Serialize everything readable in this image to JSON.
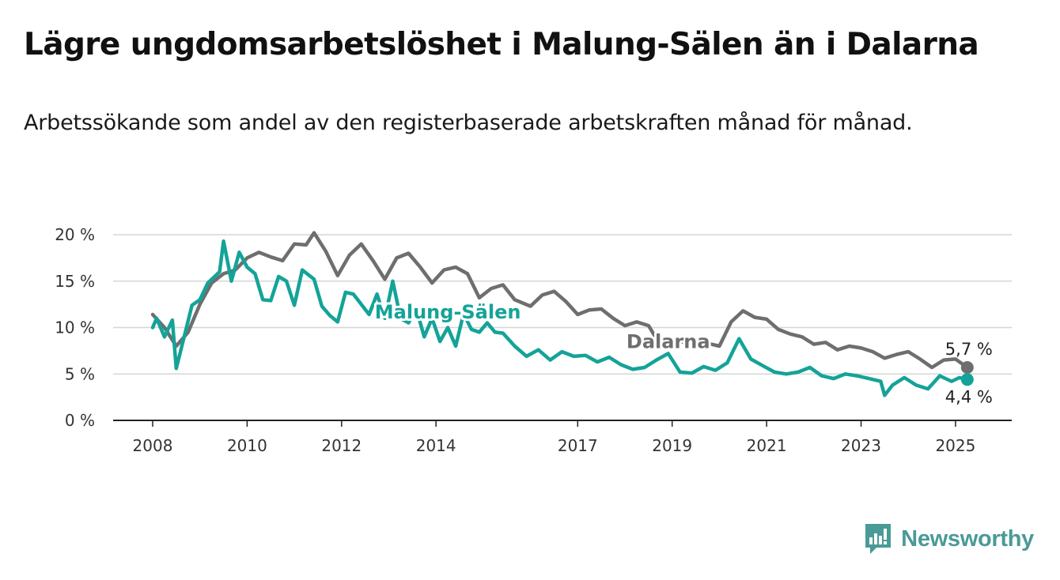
{
  "title": "Lägre ungdomsarbetslöshet i Malung-Sälen än i Dalarna",
  "subtitle": "Arbetssökande som andel av den registerbaserade arbetskraften månad för månad.",
  "brand": {
    "name": "Newsworthy",
    "icon": "newsworthy-logo-icon",
    "color": "#4a9a97"
  },
  "chart_data": {
    "type": "line",
    "title": "Lägre ungdomsarbetslöshet i Malung-Sälen än i Dalarna",
    "subtitle": "Arbetssökande som andel av den registerbaserade arbetskraften månad för månad.",
    "xlabel": "",
    "ylabel": "",
    "x_ticks": [
      "2008",
      "2010",
      "2012",
      "2014",
      "2017",
      "2019",
      "2021",
      "2023",
      "2025"
    ],
    "y_ticks": [
      "0 %",
      "5 %",
      "10 %",
      "15 %",
      "20 %"
    ],
    "ylim": [
      0,
      20
    ],
    "grid": true,
    "legend": "inline labels",
    "series": [
      {
        "name": "Dalarna",
        "color": "#6e6e6e",
        "end_label": "5,7 %",
        "points": [
          [
            "2008-01",
            11.4
          ],
          [
            "2008-04",
            10.0
          ],
          [
            "2008-07",
            8.0
          ],
          [
            "2008-10",
            9.5
          ],
          [
            "2009-01",
            12.5
          ],
          [
            "2009-04",
            14.8
          ],
          [
            "2009-07",
            15.8
          ],
          [
            "2009-10",
            16.2
          ],
          [
            "2010-01",
            17.5
          ],
          [
            "2010-04",
            18.1
          ],
          [
            "2010-07",
            17.6
          ],
          [
            "2010-10",
            17.2
          ],
          [
            "2011-01",
            19.0
          ],
          [
            "2011-04",
            18.9
          ],
          [
            "2011-06",
            20.2
          ],
          [
            "2011-09",
            18.2
          ],
          [
            "2011-12",
            15.6
          ],
          [
            "2012-03",
            17.8
          ],
          [
            "2012-06",
            19.0
          ],
          [
            "2012-09",
            17.2
          ],
          [
            "2012-12",
            15.2
          ],
          [
            "2013-03",
            17.5
          ],
          [
            "2013-06",
            18.0
          ],
          [
            "2013-09",
            16.5
          ],
          [
            "2013-12",
            14.8
          ],
          [
            "2014-03",
            16.2
          ],
          [
            "2014-06",
            16.5
          ],
          [
            "2014-09",
            15.8
          ],
          [
            "2014-12",
            13.2
          ],
          [
            "2015-03",
            14.2
          ],
          [
            "2015-06",
            14.6
          ],
          [
            "2015-09",
            13.0
          ],
          [
            "2016-01",
            12.3
          ],
          [
            "2016-04",
            13.5
          ],
          [
            "2016-07",
            13.9
          ],
          [
            "2016-10",
            12.8
          ],
          [
            "2017-01",
            11.4
          ],
          [
            "2017-04",
            11.9
          ],
          [
            "2017-07",
            12.0
          ],
          [
            "2017-10",
            11.0
          ],
          [
            "2018-01",
            10.2
          ],
          [
            "2018-04",
            10.6
          ],
          [
            "2018-07",
            10.2
          ],
          [
            "2018-10",
            8.1
          ],
          [
            "2019-01",
            8.8
          ],
          [
            "2019-04",
            8.4
          ],
          [
            "2019-07",
            8.6
          ],
          [
            "2019-10",
            8.3
          ],
          [
            "2020-01",
            8.0
          ],
          [
            "2020-04",
            10.6
          ],
          [
            "2020-07",
            11.8
          ],
          [
            "2020-10",
            11.1
          ],
          [
            "2021-01",
            10.9
          ],
          [
            "2021-04",
            9.8
          ],
          [
            "2021-07",
            9.3
          ],
          [
            "2021-10",
            9.0
          ],
          [
            "2022-01",
            8.2
          ],
          [
            "2022-04",
            8.4
          ],
          [
            "2022-07",
            7.6
          ],
          [
            "2022-10",
            8.0
          ],
          [
            "2023-01",
            7.8
          ],
          [
            "2023-04",
            7.4
          ],
          [
            "2023-07",
            6.7
          ],
          [
            "2023-10",
            7.1
          ],
          [
            "2024-01",
            7.4
          ],
          [
            "2024-04",
            6.6
          ],
          [
            "2024-07",
            5.7
          ],
          [
            "2024-10",
            6.5
          ],
          [
            "2025-01",
            6.6
          ],
          [
            "2025-04",
            5.7
          ]
        ]
      },
      {
        "name": "Malung-Sälen",
        "color": "#14a398",
        "end_label": "4,4 %",
        "points": [
          [
            "2008-01",
            10.0
          ],
          [
            "2008-02",
            11.0
          ],
          [
            "2008-04",
            9.0
          ],
          [
            "2008-06",
            10.8
          ],
          [
            "2008-07",
            5.6
          ],
          [
            "2008-09",
            9.0
          ],
          [
            "2008-11",
            12.4
          ],
          [
            "2009-01",
            13.0
          ],
          [
            "2009-03",
            14.8
          ],
          [
            "2009-06",
            16.0
          ],
          [
            "2009-07",
            19.3
          ],
          [
            "2009-09",
            15.0
          ],
          [
            "2009-11",
            18.1
          ],
          [
            "2010-01",
            16.5
          ],
          [
            "2010-03",
            15.8
          ],
          [
            "2010-05",
            13.0
          ],
          [
            "2010-07",
            12.9
          ],
          [
            "2010-09",
            15.5
          ],
          [
            "2010-11",
            15.0
          ],
          [
            "2011-01",
            12.4
          ],
          [
            "2011-03",
            16.2
          ],
          [
            "2011-06",
            15.2
          ],
          [
            "2011-08",
            12.3
          ],
          [
            "2011-10",
            11.3
          ],
          [
            "2011-12",
            10.6
          ],
          [
            "2012-02",
            13.8
          ],
          [
            "2012-04",
            13.6
          ],
          [
            "2012-06",
            12.5
          ],
          [
            "2012-08",
            11.4
          ],
          [
            "2012-10",
            13.6
          ],
          [
            "2012-12",
            11.0
          ],
          [
            "2013-02",
            15.0
          ],
          [
            "2013-04",
            11.0
          ],
          [
            "2013-06",
            10.5
          ],
          [
            "2013-08",
            12.0
          ],
          [
            "2013-10",
            9.0
          ],
          [
            "2013-12",
            11.0
          ],
          [
            "2014-02",
            8.5
          ],
          [
            "2014-04",
            10.0
          ],
          [
            "2014-06",
            8.0
          ],
          [
            "2014-08",
            11.5
          ],
          [
            "2014-10",
            9.8
          ],
          [
            "2014-12",
            9.5
          ],
          [
            "2015-02",
            10.5
          ],
          [
            "2015-04",
            9.5
          ],
          [
            "2015-06",
            9.4
          ],
          [
            "2015-09",
            8.0
          ],
          [
            "2015-12",
            6.9
          ],
          [
            "2016-03",
            7.6
          ],
          [
            "2016-06",
            6.5
          ],
          [
            "2016-09",
            7.4
          ],
          [
            "2016-12",
            6.9
          ],
          [
            "2017-03",
            7.0
          ],
          [
            "2017-06",
            6.3
          ],
          [
            "2017-09",
            6.8
          ],
          [
            "2017-12",
            6.0
          ],
          [
            "2018-03",
            5.5
          ],
          [
            "2018-06",
            5.7
          ],
          [
            "2018-09",
            6.5
          ],
          [
            "2018-12",
            7.2
          ],
          [
            "2019-03",
            5.2
          ],
          [
            "2019-06",
            5.1
          ],
          [
            "2019-09",
            5.8
          ],
          [
            "2019-12",
            5.4
          ],
          [
            "2020-03",
            6.2
          ],
          [
            "2020-06",
            8.8
          ],
          [
            "2020-09",
            6.6
          ],
          [
            "2020-12",
            5.9
          ],
          [
            "2021-03",
            5.2
          ],
          [
            "2021-06",
            5.0
          ],
          [
            "2021-09",
            5.2
          ],
          [
            "2021-12",
            5.7
          ],
          [
            "2022-03",
            4.8
          ],
          [
            "2022-06",
            4.5
          ],
          [
            "2022-09",
            5.0
          ],
          [
            "2022-12",
            4.8
          ],
          [
            "2023-03",
            4.5
          ],
          [
            "2023-06",
            4.2
          ],
          [
            "2023-07",
            2.7
          ],
          [
            "2023-09",
            3.8
          ],
          [
            "2023-12",
            4.6
          ],
          [
            "2024-03",
            3.8
          ],
          [
            "2024-06",
            3.4
          ],
          [
            "2024-09",
            4.8
          ],
          [
            "2024-12",
            4.2
          ],
          [
            "2025-02",
            4.6
          ],
          [
            "2025-04",
            4.4
          ]
        ]
      }
    ],
    "annotations": [
      {
        "text": "Malung-Sälen",
        "series": "Malung-Sälen",
        "near_x": "2014-04",
        "near_y": 11.0
      },
      {
        "text": "Dalarna",
        "series": "Dalarna",
        "near_x": "2018-12",
        "near_y": 7.8
      }
    ]
  }
}
